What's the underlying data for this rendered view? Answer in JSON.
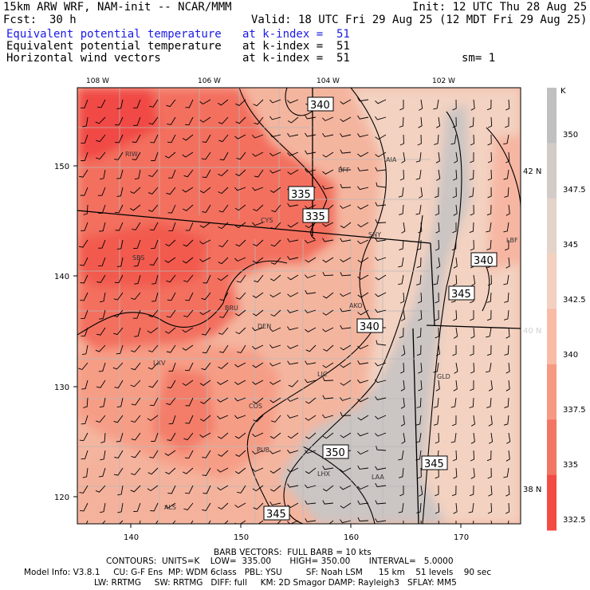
{
  "header": {
    "model": "15km ARW WRF, NAM-init -- NCAR/MMM",
    "init": "Init: 12 UTC Thu 28 Aug 25",
    "fcst_label": "Fcst:",
    "fcst_value": "30 h",
    "valid": "Valid: 18 UTC Fri 29 Aug 25 (12 MDT Fri 29 Aug 25)",
    "fields": [
      {
        "name": "Equivalent potential temperature",
        "level": "at k-index =  51",
        "color": "#1a1ae6"
      },
      {
        "name": "Equivalent potential temperature",
        "level": "at k-index =  51",
        "color": "#000000"
      },
      {
        "name": "Horizontal wind vectors",
        "level": "at k-index =  51",
        "color": "#000000"
      }
    ],
    "smoothing": "sm= 1"
  },
  "map": {
    "lon_labels": [
      "108 W",
      "106 W",
      "104 W",
      "102 W"
    ],
    "lat_labels": [
      "42 N",
      "40 N",
      "38 N"
    ],
    "x_ticks": [
      "140",
      "150",
      "160",
      "170"
    ],
    "y_ticks": [
      "150",
      "140",
      "130",
      "120"
    ],
    "cities": [
      "RIW",
      "BFF",
      "AIA",
      "CYS",
      "SNY",
      "LBF",
      "SBS",
      "BRU",
      "AKO",
      "DEN",
      "LXV",
      "LIC",
      "GLD",
      "COS",
      "PUB",
      "LHX",
      "LAA",
      "ALS"
    ],
    "contour_labels": [
      "340",
      "335",
      "335",
      "340",
      "345",
      "340",
      "350",
      "345",
      "345"
    ],
    "colors": {
      "deep_red": "#f24b45",
      "red": "#f37a68",
      "salmon": "#f6a08a",
      "light_salmon": "#f8c1ad",
      "peach": "#f2d2c2",
      "grey_light": "#d6cfcc",
      "grey": "#c6c2c2"
    }
  },
  "colorbar": {
    "unit": "K",
    "labels": [
      "350",
      "347.5",
      "345",
      "342.5",
      "340",
      "337.5",
      "335",
      "332.5"
    ],
    "colors": [
      "#c0c0c0",
      "#d2cbc8",
      "#e4d3c9",
      "#f3d0bf",
      "#f7bba6",
      "#f69a84",
      "#f37563",
      "#f24c45"
    ]
  },
  "footer": {
    "barbs": "BARB VECTORS:  FULL BARB = 10 kts",
    "contours": "CONTOURS:  UNITS=K    LOW=  335.00       HIGH= 350.00       INTERVAL=   5.0000",
    "model_info_1": "Model Info: V3.8.1     CU: G-F Ens  MP: WDM 6class   PBL: YSU         SF: Noah LSM      15 km    51 levels    90 sec",
    "model_info_2": "LW: RRTMG     SW: RRTMG   DIFF: full     KM: 2D Smagor DAMP: Rayleigh3   SFLAY: MM5"
  }
}
